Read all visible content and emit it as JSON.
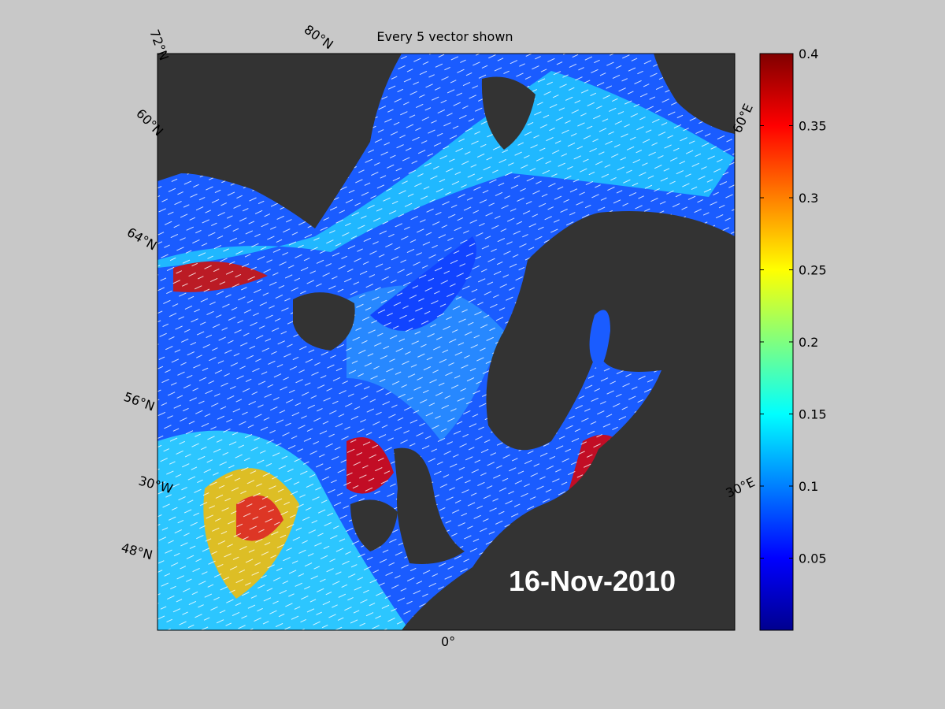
{
  "map": {
    "title": "Every 5 vector shown",
    "date": "16-Nov-2010",
    "grid_labels": [
      "72°N",
      "80°N",
      "60°N",
      "64°N",
      "56°N",
      "30°W",
      "48°N",
      "0°",
      "30°E",
      "60°E"
    ]
  },
  "colorbar": {
    "lim": [
      0,
      0.4
    ],
    "ticks": [
      0.05,
      0.1,
      0.15,
      0.2,
      0.25,
      0.3,
      0.35,
      0.4
    ]
  }
}
